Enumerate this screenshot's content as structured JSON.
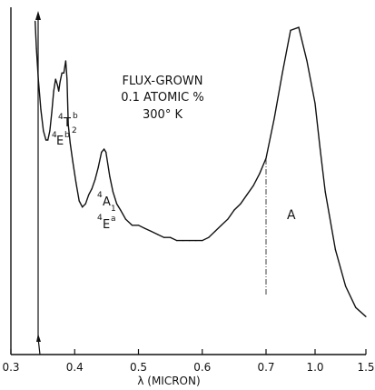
{
  "chart_data": {
    "type": "line",
    "title_lines": [
      "FLUX-GROWN",
      "0.1 ATOMIC %",
      "300° K"
    ],
    "xlabel": "λ (MICRON)",
    "ylabel": "",
    "x_ticks": [
      "0.3",
      "0.4",
      "0.5",
      "0.6",
      "0.7",
      "1.0",
      "1.5"
    ],
    "x_break_at": 0.7,
    "y_ticks": [],
    "series": [
      {
        "x": [
          0.338,
          0.34,
          0.343,
          0.347,
          0.351,
          0.355,
          0.358,
          0.361,
          0.364,
          0.367,
          0.37,
          0.373,
          0.375,
          0.377,
          0.38,
          0.383,
          0.386,
          0.388,
          0.39,
          0.393,
          0.397,
          0.402,
          0.407,
          0.412,
          0.417,
          0.422,
          0.427,
          0.432,
          0.437,
          0.442,
          0.446,
          0.449,
          0.452,
          0.455,
          0.46,
          0.466,
          0.472,
          0.48,
          0.49,
          0.5,
          0.51,
          0.52,
          0.53,
          0.54,
          0.55,
          0.56,
          0.57,
          0.58,
          0.59,
          0.6,
          0.61,
          0.62,
          0.63,
          0.64,
          0.65,
          0.66,
          0.67,
          0.68,
          0.69,
          0.7,
          0.75,
          0.8,
          0.85,
          0.9,
          0.95,
          1.0,
          1.05,
          1.1,
          1.2,
          1.3,
          1.4,
          1.5
        ],
        "y": [
          99,
          90,
          80,
          70,
          63,
          60,
          60,
          63,
          69,
          76,
          80,
          78,
          76,
          79,
          82,
          82,
          86,
          80,
          65,
          59,
          53,
          46,
          40,
          38,
          39,
          42,
          44,
          47,
          51,
          56,
          57,
          56,
          52,
          48,
          43,
          39,
          37,
          34,
          32,
          32,
          31,
          30,
          29,
          28,
          28,
          27,
          27,
          27,
          27,
          27,
          28,
          30,
          32,
          34,
          37,
          39,
          42,
          45,
          49,
          54,
          67,
          82,
          96,
          97,
          86,
          72,
          57,
          43,
          24,
          12,
          5,
          2
        ]
      }
    ],
    "annotations": [
      {
        "text_main": "E",
        "text_super_left": "4",
        "text_super_right": "b",
        "x": 0.372
      },
      {
        "text_main": "T",
        "text_super_left": "4",
        "text_super_right": "b",
        "text_sub": "2",
        "x": 0.386
      },
      {
        "text_main": "A",
        "text_super_left": "4",
        "text_sub": "1",
        "x": 0.449
      },
      {
        "text_main": "E",
        "text_super_left": "4",
        "text_super_right": "a",
        "x": 0.449
      },
      {
        "text_main": "A",
        "x": 0.87
      }
    ]
  }
}
